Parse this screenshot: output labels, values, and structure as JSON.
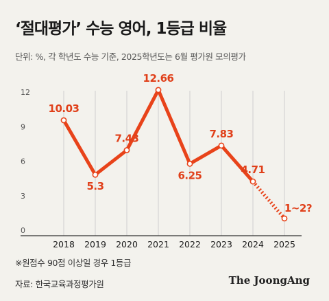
{
  "header": {
    "title": "‘절대평가’ 수능 영어, 1등급 비율",
    "subtitle": "단위: %, 각 학년도 수능 기준, 2025학년도는 6월 평가원 모의평가"
  },
  "footer": {
    "footnote": "※원점수 90점 이상일 경우 1등급",
    "source": "자료: 한국교육과정평가원",
    "brand": "The JoongAng"
  },
  "colors": {
    "line": "#e8431a",
    "grid": "#cfcfcf",
    "background": "#f3f2ed"
  },
  "chart_data": {
    "type": "line",
    "title": "",
    "xlabel": "",
    "ylabel": "",
    "ylim": [
      0,
      12
    ],
    "yticks": [
      0,
      3,
      6,
      9,
      12
    ],
    "categories": [
      "2018",
      "2019",
      "2020",
      "2021",
      "2022",
      "2023",
      "2024",
      "2025"
    ],
    "series": [
      {
        "values": [
          10.03,
          5.3,
          7.43,
          12.66,
          6.25,
          7.83,
          4.71,
          1.5
        ],
        "labels": [
          "10.03",
          "5.3",
          "7.43",
          "12.66",
          "6.25",
          "7.83",
          "4.71",
          "1~2?"
        ],
        "dashed_last_segment": true
      }
    ],
    "grid": "vertical"
  }
}
